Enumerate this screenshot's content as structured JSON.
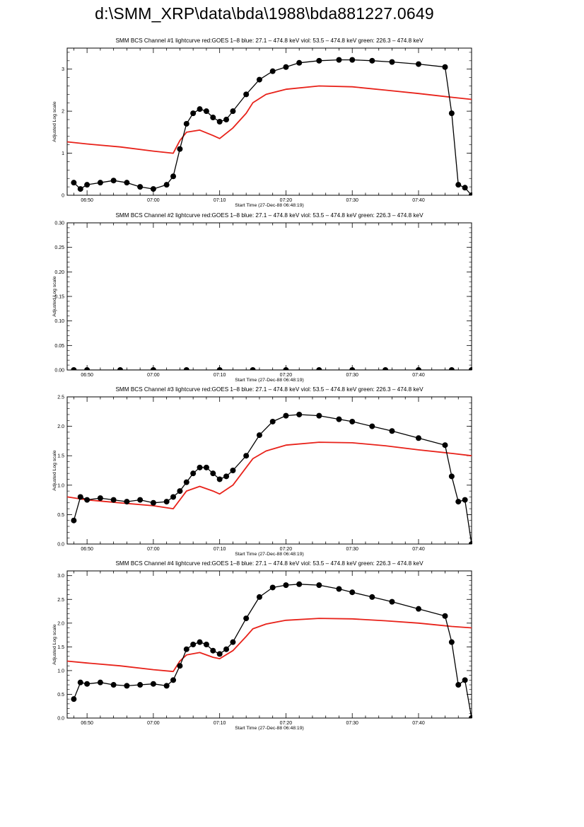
{
  "page": {
    "title": "d:\\SMM_XRP\\data\\bda\\1988\\bda881227.0649"
  },
  "style": {
    "goes_color": "#e8221a",
    "bcs_color": "#000000",
    "axis_color": "#000000"
  },
  "chart_data": [
    {
      "type": "line",
      "title": "SMM BCS Channel #1 lightcurve  red:GOES 1–8  blue: 27.1 – 474.8 keV  viol: 53.5 – 474.8 keV  green: 226.3 – 474.8 keV",
      "xlabel": "Start Time (27-Dec-88 06:48:19)",
      "ylabel": "Adjusted Log scale",
      "x_range": [
        "06:47",
        "07:48"
      ],
      "x_ticks": [
        "06:50",
        "07:00",
        "07:10",
        "07:20",
        "07:30",
        "07:40"
      ],
      "ylim": [
        0,
        3.5
      ],
      "y_ticks": [
        "0",
        "1",
        "2",
        "3"
      ],
      "series": [
        {
          "color": "red",
          "marker": "none",
          "x": [
            "06:47",
            "06:50",
            "06:55",
            "07:00",
            "07:03",
            "07:04",
            "07:05",
            "07:07",
            "07:09",
            "07:10",
            "07:12",
            "07:14",
            "07:15",
            "07:17",
            "07:20",
            "07:25",
            "07:30",
            "07:35",
            "07:40",
            "07:45",
            "07:48"
          ],
          "y": [
            1.27,
            1.22,
            1.15,
            1.05,
            1.0,
            1.3,
            1.5,
            1.55,
            1.42,
            1.35,
            1.6,
            1.95,
            2.2,
            2.4,
            2.52,
            2.6,
            2.58,
            2.5,
            2.42,
            2.33,
            2.28
          ]
        },
        {
          "color": "black",
          "marker": "filled-circle",
          "x": [
            "06:48",
            "06:49",
            "06:50",
            "06:52",
            "06:54",
            "06:56",
            "06:58",
            "07:00",
            "07:02",
            "07:03",
            "07:04",
            "07:05",
            "07:06",
            "07:07",
            "07:08",
            "07:09",
            "07:10",
            "07:11",
            "07:12",
            "07:14",
            "07:16",
            "07:18",
            "07:20",
            "07:22",
            "07:25",
            "07:28",
            "07:30",
            "07:33",
            "07:36",
            "07:40",
            "07:44",
            "07:45",
            "07:46",
            "07:47",
            "07:48"
          ],
          "y": [
            0.3,
            0.15,
            0.25,
            0.3,
            0.35,
            0.3,
            0.2,
            0.15,
            0.25,
            0.45,
            1.1,
            1.7,
            1.95,
            2.05,
            2.0,
            1.85,
            1.75,
            1.8,
            2.0,
            2.4,
            2.75,
            2.95,
            3.05,
            3.15,
            3.2,
            3.22,
            3.22,
            3.2,
            3.17,
            3.12,
            3.05,
            1.95,
            0.25,
            0.18,
            0.0
          ]
        }
      ]
    },
    {
      "type": "line",
      "title": "SMM BCS Channel #2 lightcurve  red:GOES 1–8  blue: 27.1 – 474.8 keV  viol: 53.5 – 474.8 keV  green: 226.3 – 474.8 keV",
      "xlabel": "Start Time (27-Dec-88 06:48:19)",
      "ylabel": "Adjusted Log scale",
      "x_range": [
        "06:47",
        "07:48"
      ],
      "x_ticks": [
        "06:50",
        "07:00",
        "07:10",
        "07:20",
        "07:30",
        "07:40"
      ],
      "ylim": [
        0,
        0.3
      ],
      "y_ticks": [
        "0.00",
        "0.05",
        "0.10",
        "0.15",
        "0.20",
        "0.25",
        "0.30"
      ],
      "series": [
        {
          "color": "black",
          "marker": "filled-circle",
          "x": [
            "06:48",
            "06:50",
            "06:55",
            "07:00",
            "07:05",
            "07:10",
            "07:15",
            "07:20",
            "07:25",
            "07:30",
            "07:35",
            "07:40",
            "07:45",
            "07:48"
          ],
          "y": [
            0,
            0,
            0,
            0,
            0,
            0,
            0,
            0,
            0,
            0,
            0,
            0,
            0,
            0
          ]
        }
      ]
    },
    {
      "type": "line",
      "title": "SMM BCS Channel #3 lightcurve  red:GOES 1–8  blue: 27.1 – 474.8 keV  viol: 53.5 – 474.8 keV  green: 226.3 – 474.8 keV",
      "xlabel": "Start Time (27-Dec-88 06:48:19)",
      "ylabel": "Adjusted Log scale",
      "x_range": [
        "06:47",
        "07:48"
      ],
      "x_ticks": [
        "06:50",
        "07:00",
        "07:10",
        "07:20",
        "07:30",
        "07:40"
      ],
      "ylim": [
        0,
        2.5
      ],
      "y_ticks": [
        "0.0",
        "0.5",
        "1.0",
        "1.5",
        "2.0",
        "2.5"
      ],
      "series": [
        {
          "color": "red",
          "marker": "none",
          "x": [
            "06:47",
            "06:50",
            "06:55",
            "07:00",
            "07:03",
            "07:04",
            "07:05",
            "07:07",
            "07:09",
            "07:10",
            "07:12",
            "07:14",
            "07:15",
            "07:17",
            "07:20",
            "07:25",
            "07:30",
            "07:35",
            "07:40",
            "07:45",
            "07:48"
          ],
          "y": [
            0.8,
            0.75,
            0.7,
            0.65,
            0.6,
            0.75,
            0.9,
            0.98,
            0.9,
            0.85,
            1.0,
            1.3,
            1.45,
            1.58,
            1.68,
            1.73,
            1.72,
            1.67,
            1.6,
            1.54,
            1.5
          ]
        },
        {
          "color": "black",
          "marker": "filled-circle",
          "x": [
            "06:48",
            "06:49",
            "06:50",
            "06:52",
            "06:54",
            "06:56",
            "06:58",
            "07:00",
            "07:02",
            "07:03",
            "07:04",
            "07:05",
            "07:06",
            "07:07",
            "07:08",
            "07:09",
            "07:10",
            "07:11",
            "07:12",
            "07:14",
            "07:16",
            "07:18",
            "07:20",
            "07:22",
            "07:25",
            "07:28",
            "07:30",
            "07:33",
            "07:36",
            "07:40",
            "07:44",
            "07:45",
            "07:46",
            "07:47",
            "07:48"
          ],
          "y": [
            0.4,
            0.8,
            0.75,
            0.78,
            0.75,
            0.72,
            0.75,
            0.7,
            0.72,
            0.8,
            0.9,
            1.05,
            1.2,
            1.3,
            1.3,
            1.2,
            1.1,
            1.15,
            1.25,
            1.5,
            1.85,
            2.08,
            2.18,
            2.2,
            2.18,
            2.12,
            2.08,
            2.0,
            1.92,
            1.8,
            1.68,
            1.15,
            0.72,
            0.75,
            0.0
          ]
        }
      ]
    },
    {
      "type": "line",
      "title": "SMM BCS Channel #4 lightcurve  red:GOES 1–8  blue: 27.1 – 474.8 keV  viol: 53.5 – 474.8 keV  green: 226.3 – 474.8 keV",
      "xlabel": "Start Time (27-Dec-88 06:48:19)",
      "ylabel": "Adjusted Log scale",
      "x_range": [
        "06:47",
        "07:48"
      ],
      "x_ticks": [
        "06:50",
        "07:00",
        "07:10",
        "07:20",
        "07:30",
        "07:40"
      ],
      "ylim": [
        0,
        3.1
      ],
      "y_ticks": [
        "0.0",
        "0.5",
        "1.0",
        "1.5",
        "2.0",
        "2.5",
        "3.0"
      ],
      "series": [
        {
          "color": "red",
          "marker": "none",
          "x": [
            "06:47",
            "06:50",
            "06:55",
            "07:00",
            "07:03",
            "07:04",
            "07:05",
            "07:07",
            "07:09",
            "07:10",
            "07:12",
            "07:14",
            "07:15",
            "07:17",
            "07:20",
            "07:25",
            "07:30",
            "07:35",
            "07:40",
            "07:45",
            "07:48"
          ],
          "y": [
            1.2,
            1.16,
            1.1,
            1.02,
            0.98,
            1.2,
            1.33,
            1.38,
            1.28,
            1.25,
            1.42,
            1.72,
            1.88,
            1.98,
            2.06,
            2.1,
            2.09,
            2.05,
            2.0,
            1.93,
            1.9
          ]
        },
        {
          "color": "black",
          "marker": "filled-circle",
          "x": [
            "06:48",
            "06:49",
            "06:50",
            "06:52",
            "06:54",
            "06:56",
            "06:58",
            "07:00",
            "07:02",
            "07:03",
            "07:04",
            "07:05",
            "07:06",
            "07:07",
            "07:08",
            "07:09",
            "07:10",
            "07:11",
            "07:12",
            "07:14",
            "07:16",
            "07:18",
            "07:20",
            "07:22",
            "07:25",
            "07:28",
            "07:30",
            "07:33",
            "07:36",
            "07:40",
            "07:44",
            "07:45",
            "07:46",
            "07:47",
            "07:48"
          ],
          "y": [
            0.4,
            0.75,
            0.72,
            0.75,
            0.7,
            0.68,
            0.7,
            0.72,
            0.68,
            0.8,
            1.1,
            1.45,
            1.55,
            1.6,
            1.55,
            1.42,
            1.35,
            1.45,
            1.6,
            2.1,
            2.55,
            2.75,
            2.8,
            2.82,
            2.8,
            2.72,
            2.65,
            2.55,
            2.45,
            2.3,
            2.15,
            1.6,
            0.7,
            0.8,
            0.0
          ]
        }
      ]
    }
  ]
}
